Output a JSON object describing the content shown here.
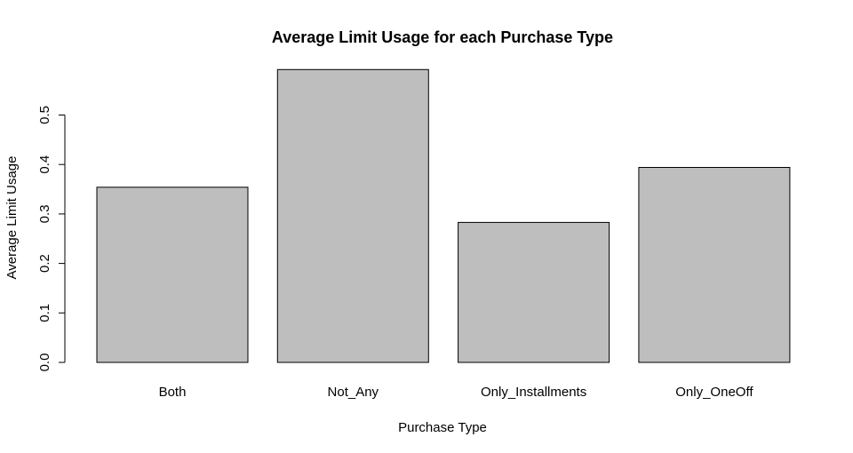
{
  "chart_data": {
    "type": "bar",
    "title": "Average Limit Usage for each Purchase Type",
    "xlabel": "Purchase Type",
    "ylabel": "Average Limit Usage",
    "categories": [
      "Both",
      "Not_Any",
      "Only_Installments",
      "Only_OneOff"
    ],
    "values": [
      0.354,
      0.592,
      0.283,
      0.394
    ],
    "ylim": [
      0,
      0.6
    ],
    "yticks": [
      "0.0",
      "0.1",
      "0.2",
      "0.3",
      "0.4",
      "0.5"
    ],
    "bar_color": "#bebebe",
    "grid": false,
    "legend": "none"
  }
}
